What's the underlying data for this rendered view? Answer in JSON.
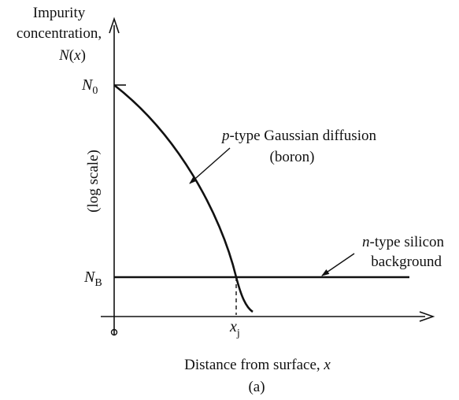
{
  "y_axis": {
    "title_line1": "Impurity",
    "title_line2": "concentration,",
    "title_symbol": "N",
    "title_arg_open": "(",
    "title_arg": "x",
    "title_arg_close": ")",
    "scale_note": "(log scale)",
    "tick_n0_base": "N",
    "tick_n0_sub": "0",
    "tick_nb_base": "N",
    "tick_nb_sub": "B"
  },
  "x_axis": {
    "title": "Distance from surface, ",
    "title_var": "x",
    "origin_label": "0",
    "junction_base": "x",
    "junction_sub": "j"
  },
  "curves": {
    "gaussian": {
      "label_prefix": "p",
      "label_rest": "-type Gaussian diffusion",
      "label_line2": "(boron)"
    },
    "background": {
      "label_prefix": "n",
      "label_rest": "-type silicon",
      "label_line2": "background"
    }
  },
  "caption": "(a)"
}
